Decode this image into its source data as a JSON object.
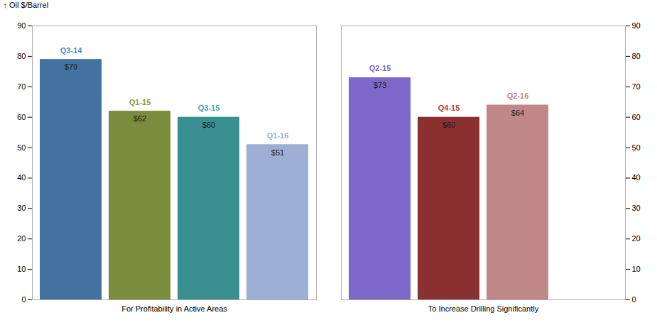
{
  "chart_data": {
    "type": "bar",
    "ylabel": "Oil $/Barrel",
    "groups": [
      {
        "name": "For Profitability in Active Areas",
        "categories": [
          "Q3-14",
          "Q1-15",
          "Q3-15",
          "Q1-16"
        ],
        "values": [
          79,
          62,
          60,
          51
        ],
        "value_labels": [
          "$79",
          "$62",
          "$60",
          "$51"
        ],
        "colors": [
          "#4472A0",
          "#7A8C3E",
          "#3A9090",
          "#9DAFD4"
        ],
        "label_colors": [
          "#4A90C8",
          "#8A9C30",
          "#3AACAC",
          "#9DAFD4"
        ]
      },
      {
        "name": "To Increase Drilling Significantly",
        "categories": [
          "Q2-15",
          "Q4-15",
          "Q2-16"
        ],
        "values": [
          73,
          60,
          64
        ],
        "value_labels": [
          "$73",
          "$60",
          "$64"
        ],
        "colors": [
          "#7B68C8",
          "#8B3030",
          "#C08888"
        ],
        "label_colors": [
          "#7B68C8",
          "#B04040",
          "#C08888"
        ]
      }
    ],
    "ylim": [
      0,
      90
    ],
    "yticks": [
      0,
      10,
      20,
      30,
      40,
      50,
      60,
      70,
      80,
      90
    ],
    "grid": false,
    "data_labels": true
  }
}
